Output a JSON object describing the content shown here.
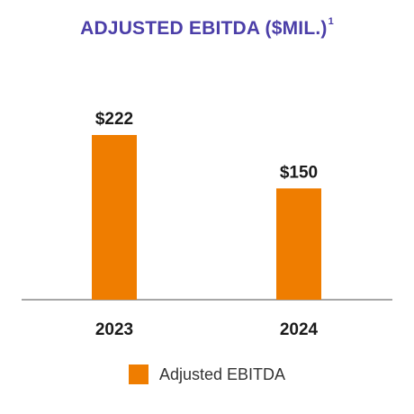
{
  "colors": {
    "title": "#4b3ea8",
    "bar": "#ef7d00",
    "axis": "#8a8a8a"
  },
  "chart_data": {
    "type": "bar",
    "title": "ADJUSTED EBITDA ($MIL.)",
    "title_footnote": "1",
    "categories": [
      "2023",
      "2024"
    ],
    "series": [
      {
        "name": "Adjusted EBITDA",
        "values": [
          222,
          150
        ],
        "labels": [
          "$222",
          "$150"
        ]
      }
    ],
    "xlabel": "",
    "ylabel": "",
    "ylim": [
      0,
      222
    ],
    "grid": false,
    "legend": "bottom-center"
  }
}
